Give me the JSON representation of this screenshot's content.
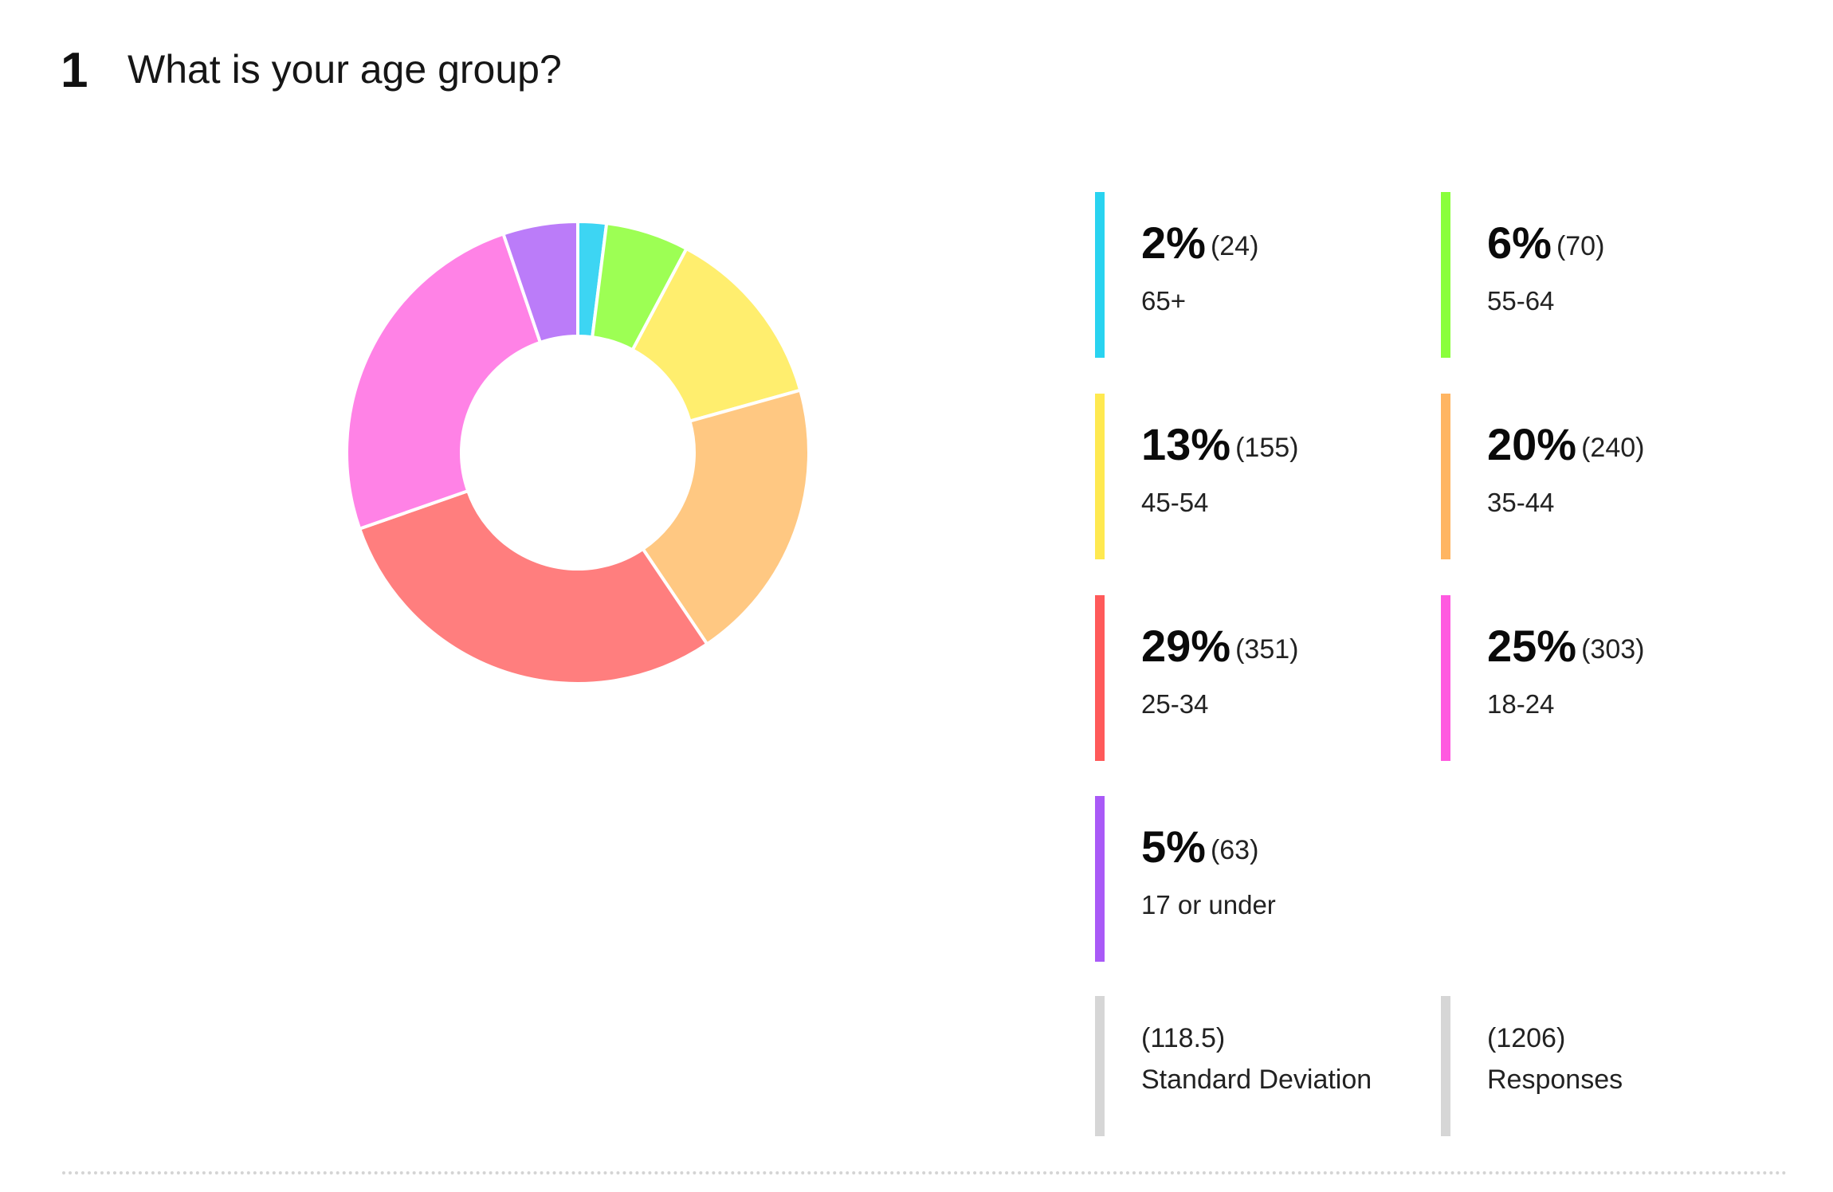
{
  "question": {
    "number": "1",
    "title": "What is your age group?"
  },
  "chart_data": {
    "type": "pie",
    "categories": [
      "65+",
      "55-64",
      "45-54",
      "35-44",
      "25-34",
      "18-24",
      "17 or under"
    ],
    "values": [
      24,
      70,
      155,
      240,
      351,
      303,
      63
    ],
    "percent_labels": [
      "2%",
      "6%",
      "13%",
      "20%",
      "29%",
      "25%",
      "5%"
    ],
    "count_labels": [
      "(24)",
      "(70)",
      "(155)",
      "(240)",
      "(351)",
      "(303)",
      "(63)"
    ],
    "colors": [
      "#3dd5f3",
      "#9dff54",
      "#ffee6e",
      "#ffc882",
      "#ff7e7e",
      "#ff82e6",
      "#bb7cf9"
    ],
    "legend_colors": [
      "#29d3f0",
      "#8aff3c",
      "#ffe950",
      "#ffb562",
      "#ff5a5a",
      "#ff5ae0",
      "#a95af7"
    ],
    "legend_placement": "right"
  },
  "stats": {
    "std_dev_value": "(118.5)",
    "std_dev_label": "Standard Deviation",
    "responses_value": "(1206)",
    "responses_label": "Responses"
  }
}
